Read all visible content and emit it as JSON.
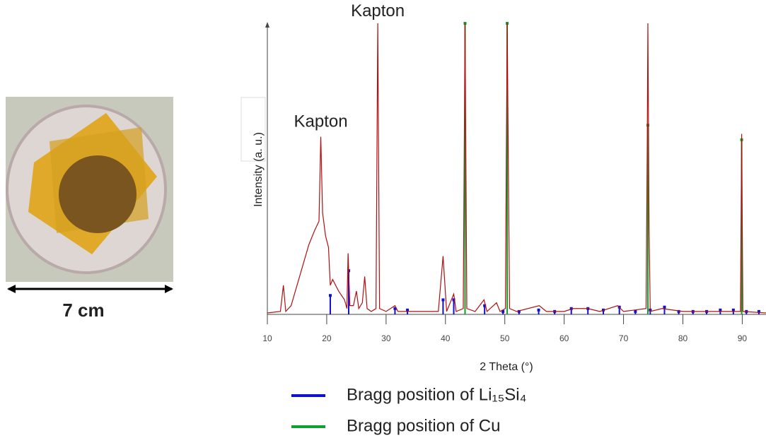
{
  "image": {
    "scale_label": "7 cm"
  },
  "chart_data": {
    "type": "line",
    "xlabel": "2 Theta (°)",
    "ylabel": "Intensity (a. u.)",
    "xlim": [
      10,
      94
    ],
    "ylim": [
      0,
      100
    ],
    "xticks": [
      10,
      20,
      30,
      40,
      50,
      60,
      70,
      80,
      90
    ],
    "annotations": [
      {
        "text": "Kapton",
        "x": 19.0,
        "y": 66
      },
      {
        "text": "Kapton",
        "x": 28.6,
        "y": 104
      }
    ],
    "series": [
      {
        "color": "#b01010",
        "mark": "line",
        "x": [
          10,
          12.2,
          12.7,
          13.1,
          14,
          15,
          16,
          17,
          18,
          18.7,
          19.0,
          19.3,
          19.8,
          20.3,
          20.6,
          21,
          22,
          23,
          23.4,
          23.6,
          23.9,
          24.5,
          25,
          25.4,
          26.0,
          26.4,
          26.8,
          27.5,
          28.3,
          28.6,
          28.9,
          30,
          31.5,
          32,
          35,
          38.8,
          39.6,
          40.2,
          41.4,
          41.8,
          43.0,
          43.3,
          43.6,
          45,
          46.5,
          47,
          48.6,
          49.2,
          50.1,
          50.4,
          50.8,
          52,
          55.8,
          57,
          60,
          61.5,
          64,
          66,
          69,
          70,
          73.8,
          74.0,
          74.1,
          74.3,
          74.5,
          76.5,
          80,
          85,
          89.7,
          89.9,
          90.1,
          94
        ],
        "values": [
          0.5,
          1,
          10,
          1,
          3,
          10,
          17,
          24,
          29,
          32,
          61,
          35,
          27,
          23,
          10,
          12,
          8,
          5,
          2,
          21,
          3,
          3,
          8,
          2,
          4,
          13,
          2,
          1,
          2,
          100,
          2,
          1,
          3,
          1,
          1,
          1,
          20,
          1,
          7,
          1,
          2,
          100,
          2,
          1,
          5,
          1,
          4,
          1,
          2,
          100,
          2,
          1,
          3,
          1,
          1,
          2,
          2,
          1,
          3,
          1,
          2,
          60,
          100,
          30,
          1,
          2,
          1,
          1,
          1,
          62,
          1,
          0.5
        ]
      },
      {
        "name": "Bragg position of Li₁₅Si₄",
        "color": "#1010d0",
        "mark": "stick",
        "x": [
          20.6,
          23.7,
          31.5,
          33.6,
          39.6,
          41.4,
          46.6,
          49.7,
          52.4,
          55.7,
          58.4,
          61.2,
          64,
          66.6,
          69.3,
          72,
          74.5,
          76.9,
          79.3,
          81.7,
          84,
          86.3,
          88.5,
          90.7,
          92.8
        ],
        "values": [
          6.5,
          15,
          2,
          1.5,
          5,
          5,
          3,
          1,
          1,
          1.5,
          1,
          2,
          2,
          1.5,
          2.5,
          1,
          1.5,
          2.5,
          1,
          1,
          1,
          1.5,
          1.5,
          1,
          1
        ]
      },
      {
        "name": "Bragg position of Cu",
        "color": "#10a030",
        "mark": "stick",
        "x": [
          43.3,
          50.4,
          74.1,
          89.9
        ],
        "values": [
          100,
          100,
          65,
          60
        ]
      }
    ]
  }
}
